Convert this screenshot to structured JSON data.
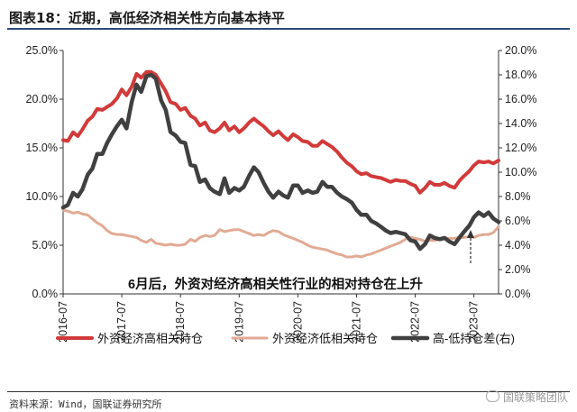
{
  "header": {
    "title": "图表18：近期，高低经济相关性方向基本持平"
  },
  "footer": {
    "source": "资料来源：Wind，国联证券研究所",
    "watermark": "国联策略团队",
    "watermark_icon": "wechat-icon"
  },
  "chart_data": {
    "type": "line",
    "title": "",
    "xlabel": "",
    "ylabel": "",
    "ylabel_right": "",
    "x_ticks": [
      "2016-07",
      "2017-07",
      "2018-07",
      "2019-07",
      "2020-07",
      "2021-07",
      "2022-07",
      "2023-07"
    ],
    "y_left": {
      "ticks": [
        "0.0%",
        "5.0%",
        "10.0%",
        "15.0%",
        "20.0%",
        "25.0%"
      ],
      "lim": [
        0,
        25
      ]
    },
    "y_right": {
      "ticks": [
        "0.0%",
        "2.0%",
        "4.0%",
        "6.0%",
        "8.0%",
        "10.0%",
        "12.0%",
        "14.0%",
        "16.0%",
        "18.0%",
        "20.0%"
      ],
      "lim": [
        0,
        20
      ]
    },
    "annotation": "6月后，外资对经济高相关性行业的相对持仓在上升",
    "grid": false,
    "legend_position": "bottom",
    "series": [
      {
        "name": "外资经济高相关持仓",
        "axis": "left",
        "color": "#d23a3a",
        "points": [
          [
            2016.5,
            15.8
          ],
          [
            2016.58,
            15.7
          ],
          [
            2016.67,
            16.6
          ],
          [
            2016.75,
            16.2
          ],
          [
            2016.83,
            16.9
          ],
          [
            2016.92,
            17.8
          ],
          [
            2017.0,
            18.2
          ],
          [
            2017.08,
            19.0
          ],
          [
            2017.17,
            18.9
          ],
          [
            2017.25,
            19.2
          ],
          [
            2017.33,
            19.5
          ],
          [
            2017.42,
            20.1
          ],
          [
            2017.5,
            21.0
          ],
          [
            2017.58,
            20.4
          ],
          [
            2017.67,
            21.3
          ],
          [
            2017.75,
            22.6
          ],
          [
            2017.83,
            22.2
          ],
          [
            2017.92,
            22.8
          ],
          [
            2018.0,
            22.8
          ],
          [
            2018.08,
            22.5
          ],
          [
            2018.17,
            21.6
          ],
          [
            2018.25,
            20.8
          ],
          [
            2018.33,
            19.7
          ],
          [
            2018.42,
            19.5
          ],
          [
            2018.5,
            18.9
          ],
          [
            2018.58,
            19.1
          ],
          [
            2018.67,
            18.3
          ],
          [
            2018.75,
            18.0
          ],
          [
            2018.83,
            17.3
          ],
          [
            2018.92,
            17.6
          ],
          [
            2019.0,
            16.8
          ],
          [
            2019.08,
            16.6
          ],
          [
            2019.17,
            17.0
          ],
          [
            2019.25,
            17.6
          ],
          [
            2019.33,
            16.8
          ],
          [
            2019.42,
            17.2
          ],
          [
            2019.5,
            16.6
          ],
          [
            2019.58,
            17.0
          ],
          [
            2019.67,
            17.6
          ],
          [
            2019.75,
            18.0
          ],
          [
            2019.83,
            17.6
          ],
          [
            2019.92,
            17.2
          ],
          [
            2020.0,
            16.7
          ],
          [
            2020.08,
            16.3
          ],
          [
            2020.17,
            16.7
          ],
          [
            2020.25,
            16.2
          ],
          [
            2020.33,
            15.8
          ],
          [
            2020.42,
            16.4
          ],
          [
            2020.5,
            16.1
          ],
          [
            2020.58,
            15.7
          ],
          [
            2020.67,
            15.6
          ],
          [
            2020.75,
            15.2
          ],
          [
            2020.83,
            15.2
          ],
          [
            2020.92,
            15.7
          ],
          [
            2021.0,
            15.4
          ],
          [
            2021.08,
            15.1
          ],
          [
            2021.17,
            14.6
          ],
          [
            2021.25,
            14.0
          ],
          [
            2021.33,
            13.5
          ],
          [
            2021.42,
            13.1
          ],
          [
            2021.5,
            12.6
          ],
          [
            2021.58,
            12.3
          ],
          [
            2021.67,
            12.4
          ],
          [
            2021.75,
            12.1
          ],
          [
            2021.83,
            12.0
          ],
          [
            2021.92,
            11.9
          ],
          [
            2022.0,
            11.7
          ],
          [
            2022.08,
            11.5
          ],
          [
            2022.17,
            11.7
          ],
          [
            2022.25,
            11.6
          ],
          [
            2022.33,
            11.6
          ],
          [
            2022.42,
            11.3
          ],
          [
            2022.5,
            11.1
          ],
          [
            2022.58,
            10.4
          ],
          [
            2022.67,
            10.9
          ],
          [
            2022.75,
            11.5
          ],
          [
            2022.83,
            11.2
          ],
          [
            2022.92,
            11.2
          ],
          [
            2023.0,
            11.4
          ],
          [
            2023.08,
            11.1
          ],
          [
            2023.17,
            10.9
          ],
          [
            2023.25,
            11.6
          ],
          [
            2023.33,
            12.1
          ],
          [
            2023.42,
            12.6
          ],
          [
            2023.5,
            13.2
          ],
          [
            2023.58,
            13.6
          ],
          [
            2023.67,
            13.5
          ],
          [
            2023.75,
            13.6
          ],
          [
            2023.83,
            13.4
          ],
          [
            2023.92,
            13.7
          ]
        ]
      },
      {
        "name": "外资经济低相关持仓",
        "axis": "left",
        "color": "#e2aa94",
        "points": [
          [
            2016.5,
            8.6
          ],
          [
            2016.58,
            8.5
          ],
          [
            2016.67,
            8.3
          ],
          [
            2016.75,
            8.4
          ],
          [
            2016.83,
            8.2
          ],
          [
            2016.92,
            8.1
          ],
          [
            2017.0,
            7.7
          ],
          [
            2017.08,
            7.3
          ],
          [
            2017.17,
            7.0
          ],
          [
            2017.25,
            6.5
          ],
          [
            2017.33,
            6.2
          ],
          [
            2017.42,
            6.1
          ],
          [
            2017.5,
            6.1
          ],
          [
            2017.58,
            6.0
          ],
          [
            2017.67,
            5.9
          ],
          [
            2017.75,
            5.8
          ],
          [
            2017.83,
            5.5
          ],
          [
            2017.92,
            5.3
          ],
          [
            2018.0,
            5.6
          ],
          [
            2018.08,
            5.2
          ],
          [
            2018.17,
            5.1
          ],
          [
            2018.25,
            5.0
          ],
          [
            2018.33,
            5.1
          ],
          [
            2018.42,
            5.0
          ],
          [
            2018.5,
            5.0
          ],
          [
            2018.58,
            5.1
          ],
          [
            2018.67,
            5.6
          ],
          [
            2018.75,
            5.4
          ],
          [
            2018.83,
            5.8
          ],
          [
            2018.92,
            6.0
          ],
          [
            2019.0,
            5.9
          ],
          [
            2019.08,
            6.0
          ],
          [
            2019.17,
            6.6
          ],
          [
            2019.25,
            6.4
          ],
          [
            2019.33,
            6.5
          ],
          [
            2019.42,
            6.6
          ],
          [
            2019.5,
            6.6
          ],
          [
            2019.58,
            6.4
          ],
          [
            2019.67,
            6.2
          ],
          [
            2019.75,
            6.0
          ],
          [
            2019.83,
            6.1
          ],
          [
            2019.92,
            6.0
          ],
          [
            2020.0,
            6.3
          ],
          [
            2020.08,
            6.5
          ],
          [
            2020.17,
            6.4
          ],
          [
            2020.25,
            6.1
          ],
          [
            2020.33,
            5.9
          ],
          [
            2020.42,
            5.7
          ],
          [
            2020.5,
            5.5
          ],
          [
            2020.58,
            5.3
          ],
          [
            2020.67,
            5.0
          ],
          [
            2020.75,
            4.8
          ],
          [
            2020.83,
            4.7
          ],
          [
            2020.92,
            4.6
          ],
          [
            2021.0,
            4.5
          ],
          [
            2021.08,
            4.3
          ],
          [
            2021.17,
            4.1
          ],
          [
            2021.25,
            4.0
          ],
          [
            2021.33,
            3.8
          ],
          [
            2021.42,
            3.8
          ],
          [
            2021.5,
            3.9
          ],
          [
            2021.58,
            3.8
          ],
          [
            2021.67,
            4.0
          ],
          [
            2021.75,
            4.1
          ],
          [
            2021.83,
            4.3
          ],
          [
            2021.92,
            4.5
          ],
          [
            2022.0,
            4.7
          ],
          [
            2022.08,
            4.9
          ],
          [
            2022.17,
            5.1
          ],
          [
            2022.25,
            5.3
          ],
          [
            2022.33,
            5.6
          ],
          [
            2022.42,
            5.8
          ],
          [
            2022.5,
            5.7
          ],
          [
            2022.58,
            5.6
          ],
          [
            2022.67,
            5.4
          ],
          [
            2022.75,
            5.5
          ],
          [
            2022.83,
            5.5
          ],
          [
            2022.92,
            5.6
          ],
          [
            2023.0,
            5.7
          ],
          [
            2023.08,
            5.7
          ],
          [
            2023.17,
            5.7
          ],
          [
            2023.25,
            5.8
          ],
          [
            2023.33,
            5.8
          ],
          [
            2023.42,
            5.9
          ],
          [
            2023.5,
            5.8
          ],
          [
            2023.58,
            6.0
          ],
          [
            2023.67,
            6.1
          ],
          [
            2023.75,
            6.1
          ],
          [
            2023.83,
            6.3
          ],
          [
            2023.92,
            6.9
          ]
        ]
      },
      {
        "name": "高-低持仓差(右)",
        "axis": "right",
        "color": "#404040",
        "points": [
          [
            2016.5,
            7.1
          ],
          [
            2016.58,
            7.3
          ],
          [
            2016.67,
            8.3
          ],
          [
            2016.75,
            8.0
          ],
          [
            2016.83,
            8.6
          ],
          [
            2016.92,
            9.8
          ],
          [
            2017.0,
            10.3
          ],
          [
            2017.08,
            11.5
          ],
          [
            2017.17,
            11.5
          ],
          [
            2017.25,
            12.4
          ],
          [
            2017.33,
            13.1
          ],
          [
            2017.42,
            13.8
          ],
          [
            2017.5,
            14.3
          ],
          [
            2017.58,
            13.6
          ],
          [
            2017.67,
            15.8
          ],
          [
            2017.75,
            17.2
          ],
          [
            2017.83,
            16.6
          ],
          [
            2017.92,
            17.9
          ],
          [
            2018.0,
            18.0
          ],
          [
            2018.08,
            17.7
          ],
          [
            2018.17,
            15.9
          ],
          [
            2018.25,
            15.1
          ],
          [
            2018.33,
            13.3
          ],
          [
            2018.42,
            13.0
          ],
          [
            2018.5,
            12.5
          ],
          [
            2018.58,
            12.4
          ],
          [
            2018.67,
            10.6
          ],
          [
            2018.75,
            10.5
          ],
          [
            2018.83,
            9.2
          ],
          [
            2018.92,
            9.4
          ],
          [
            2019.0,
            8.7
          ],
          [
            2019.08,
            8.4
          ],
          [
            2019.17,
            8.2
          ],
          [
            2019.25,
            9.5
          ],
          [
            2019.33,
            8.3
          ],
          [
            2019.42,
            8.7
          ],
          [
            2019.5,
            8.5
          ],
          [
            2019.58,
            8.8
          ],
          [
            2019.67,
            9.7
          ],
          [
            2019.75,
            10.4
          ],
          [
            2019.83,
            10.0
          ],
          [
            2019.92,
            9.1
          ],
          [
            2020.0,
            8.4
          ],
          [
            2020.08,
            7.9
          ],
          [
            2020.17,
            8.4
          ],
          [
            2020.25,
            8.1
          ],
          [
            2020.33,
            7.9
          ],
          [
            2020.42,
            8.9
          ],
          [
            2020.5,
            8.9
          ],
          [
            2020.58,
            8.3
          ],
          [
            2020.67,
            8.5
          ],
          [
            2020.75,
            8.3
          ],
          [
            2020.83,
            8.4
          ],
          [
            2020.92,
            9.2
          ],
          [
            2021.0,
            8.8
          ],
          [
            2021.08,
            8.8
          ],
          [
            2021.17,
            8.3
          ],
          [
            2021.25,
            8.0
          ],
          [
            2021.33,
            7.8
          ],
          [
            2021.42,
            7.5
          ],
          [
            2021.5,
            6.9
          ],
          [
            2021.58,
            6.5
          ],
          [
            2021.67,
            6.5
          ],
          [
            2021.75,
            6.0
          ],
          [
            2021.83,
            5.8
          ],
          [
            2021.92,
            5.5
          ],
          [
            2022.0,
            5.2
          ],
          [
            2022.08,
            5.0
          ],
          [
            2022.17,
            5.1
          ],
          [
            2022.25,
            5.0
          ],
          [
            2022.33,
            4.9
          ],
          [
            2022.42,
            4.4
          ],
          [
            2022.5,
            4.3
          ],
          [
            2022.58,
            3.7
          ],
          [
            2022.67,
            4.1
          ],
          [
            2022.75,
            4.8
          ],
          [
            2022.83,
            4.6
          ],
          [
            2022.92,
            4.5
          ],
          [
            2023.0,
            4.6
          ],
          [
            2023.08,
            4.3
          ],
          [
            2023.17,
            4.1
          ],
          [
            2023.25,
            4.6
          ],
          [
            2023.33,
            5.1
          ],
          [
            2023.42,
            5.6
          ],
          [
            2023.5,
            6.3
          ],
          [
            2023.58,
            6.7
          ],
          [
            2023.67,
            6.4
          ],
          [
            2023.75,
            6.7
          ],
          [
            2023.83,
            6.2
          ],
          [
            2023.92,
            5.9
          ]
        ]
      }
    ]
  }
}
